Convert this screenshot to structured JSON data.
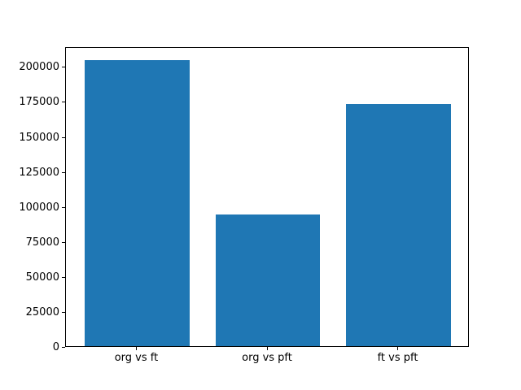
{
  "figure": {
    "background_color": "#ffffff",
    "spine_color": "#000000",
    "tick_color": "#000000",
    "text_color": "#000000"
  },
  "chart_data": {
    "type": "bar",
    "title": "",
    "xlabel": "",
    "ylabel": "",
    "categories": [
      "org vs ft",
      "org vs pft",
      "ft vs pft"
    ],
    "values": [
      204500,
      94400,
      173000
    ],
    "bar_color": "#1f77b4",
    "bar_width_fraction": 0.8,
    "xlim": [
      -0.545,
      2.545
    ],
    "ylim": [
      0,
      214725
    ],
    "yticks": [
      0,
      25000,
      50000,
      75000,
      100000,
      125000,
      150000,
      175000,
      200000
    ],
    "ytick_labels": [
      "0",
      "25000",
      "50000",
      "75000",
      "100000",
      "125000",
      "150000",
      "175000",
      "200000"
    ],
    "grid": false,
    "legend": false
  }
}
